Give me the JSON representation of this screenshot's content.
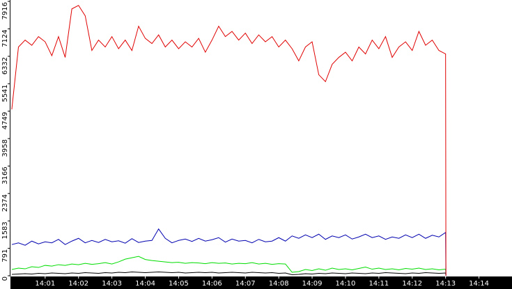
{
  "chart_data": {
    "type": "line",
    "x": [
      0,
      0.2,
      0.4,
      0.6,
      0.8,
      1.0,
      1.2,
      1.4,
      1.6,
      1.8,
      2.0,
      2.2,
      2.4,
      2.6,
      2.8,
      3.0,
      3.2,
      3.4,
      3.6,
      3.8,
      4.0,
      4.2,
      4.4,
      4.6,
      4.8,
      5.0,
      5.2,
      5.4,
      5.6,
      5.8,
      6.0,
      6.2,
      6.4,
      6.6,
      6.8,
      7.0,
      7.2,
      7.4,
      7.6,
      7.8,
      8.0,
      8.2,
      8.4,
      8.6,
      8.8,
      9.0,
      9.2,
      9.4,
      9.6,
      9.8,
      10.0,
      10.2,
      10.4,
      10.6,
      10.8,
      11.0,
      11.2,
      11.4,
      11.6,
      11.8,
      12.0,
      12.2,
      12.4,
      12.6,
      12.8,
      13.0,
      13.01
    ],
    "series": [
      {
        "color": "#e00000",
        "values": [
          4800,
          6600,
          6800,
          6650,
          6900,
          6750,
          6350,
          6900,
          6300,
          7700,
          7800,
          7500,
          6500,
          6800,
          6600,
          6900,
          6550,
          6800,
          6500,
          7200,
          6850,
          6700,
          6950,
          6600,
          6800,
          6550,
          6750,
          6600,
          6850,
          6450,
          6800,
          7200,
          6900,
          7050,
          6800,
          7000,
          6700,
          6950,
          6750,
          6900,
          6600,
          6800,
          6550,
          6200,
          6600,
          6750,
          5800,
          5600,
          6100,
          6300,
          6450,
          6200,
          6600,
          6400,
          6800,
          6550,
          6900,
          6300,
          6600,
          6750,
          6500,
          7050,
          6650,
          6800,
          6500,
          6400,
          0
        ]
      },
      {
        "color": "#0000b0",
        "values": [
          900,
          950,
          880,
          1000,
          920,
          980,
          950,
          1050,
          900,
          1000,
          1080,
          950,
          1020,
          960,
          1050,
          980,
          1010,
          940,
          1070,
          960,
          1000,
          1020,
          1350,
          1080,
          950,
          1020,
          1060,
          990,
          1080,
          1000,
          1040,
          1100,
          970,
          1060,
          1000,
          1020,
          950,
          1050,
          980,
          1000,
          1100,
          1000,
          1150,
          1080,
          1180,
          1100,
          1200,
          1050,
          1150,
          1100,
          1180,
          1060,
          1120,
          1200,
          1100,
          1150,
          1050,
          1120,
          1080,
          1180,
          1100,
          1200,
          1080,
          1170,
          1120,
          1250,
          0
        ]
      },
      {
        "color": "#00dd00",
        "values": [
          180,
          220,
          200,
          260,
          240,
          300,
          280,
          320,
          300,
          340,
          320,
          360,
          330,
          350,
          380,
          340,
          400,
          480,
          520,
          560,
          470,
          440,
          420,
          400,
          380,
          390,
          360,
          380,
          370,
          350,
          380,
          360,
          370,
          340,
          360,
          350,
          380,
          340,
          360,
          330,
          350,
          340,
          100,
          120,
          180,
          150,
          200,
          160,
          220,
          180,
          200,
          170,
          210,
          250,
          190,
          220,
          180,
          200,
          170,
          210,
          190,
          220,
          180,
          200,
          170,
          190,
          0
        ]
      },
      {
        "color": "#000000",
        "values": [
          40,
          50,
          60,
          50,
          70,
          60,
          80,
          70,
          60,
          80,
          70,
          90,
          80,
          70,
          90,
          80,
          100,
          90,
          110,
          100,
          90,
          100,
          110,
          100,
          90,
          100,
          80,
          90,
          100,
          90,
          100,
          80,
          90,
          100,
          90,
          80,
          100,
          90,
          80,
          90,
          70,
          80,
          30,
          40,
          60,
          50,
          70,
          60,
          80,
          70,
          60,
          80,
          70,
          60,
          80,
          70,
          90,
          80,
          70,
          60,
          80,
          70,
          90,
          80,
          70,
          80,
          0
        ]
      }
    ],
    "xlim": [
      -0.04,
      14.99
    ],
    "xticks": [
      {
        "value": 1,
        "label": "14:01"
      },
      {
        "value": 2,
        "label": "14:02"
      },
      {
        "value": 3,
        "label": "14:03"
      },
      {
        "value": 4,
        "label": "14:04"
      },
      {
        "value": 5,
        "label": "14:05"
      },
      {
        "value": 6,
        "label": "14:06"
      },
      {
        "value": 7,
        "label": "14:07"
      },
      {
        "value": 8,
        "label": "14:08"
      },
      {
        "value": 9,
        "label": "14:09"
      },
      {
        "value": 10,
        "label": "14:10"
      },
      {
        "value": 11,
        "label": "14:11"
      },
      {
        "value": 12,
        "label": "14:12"
      },
      {
        "value": 13,
        "label": "14:13"
      },
      {
        "value": 14,
        "label": "14:14"
      }
    ],
    "ylim": [
      0,
      7916
    ],
    "yticks": [
      0,
      791,
      1583,
      2374,
      3166,
      3958,
      4749,
      5541,
      6332,
      7124,
      7916
    ]
  }
}
